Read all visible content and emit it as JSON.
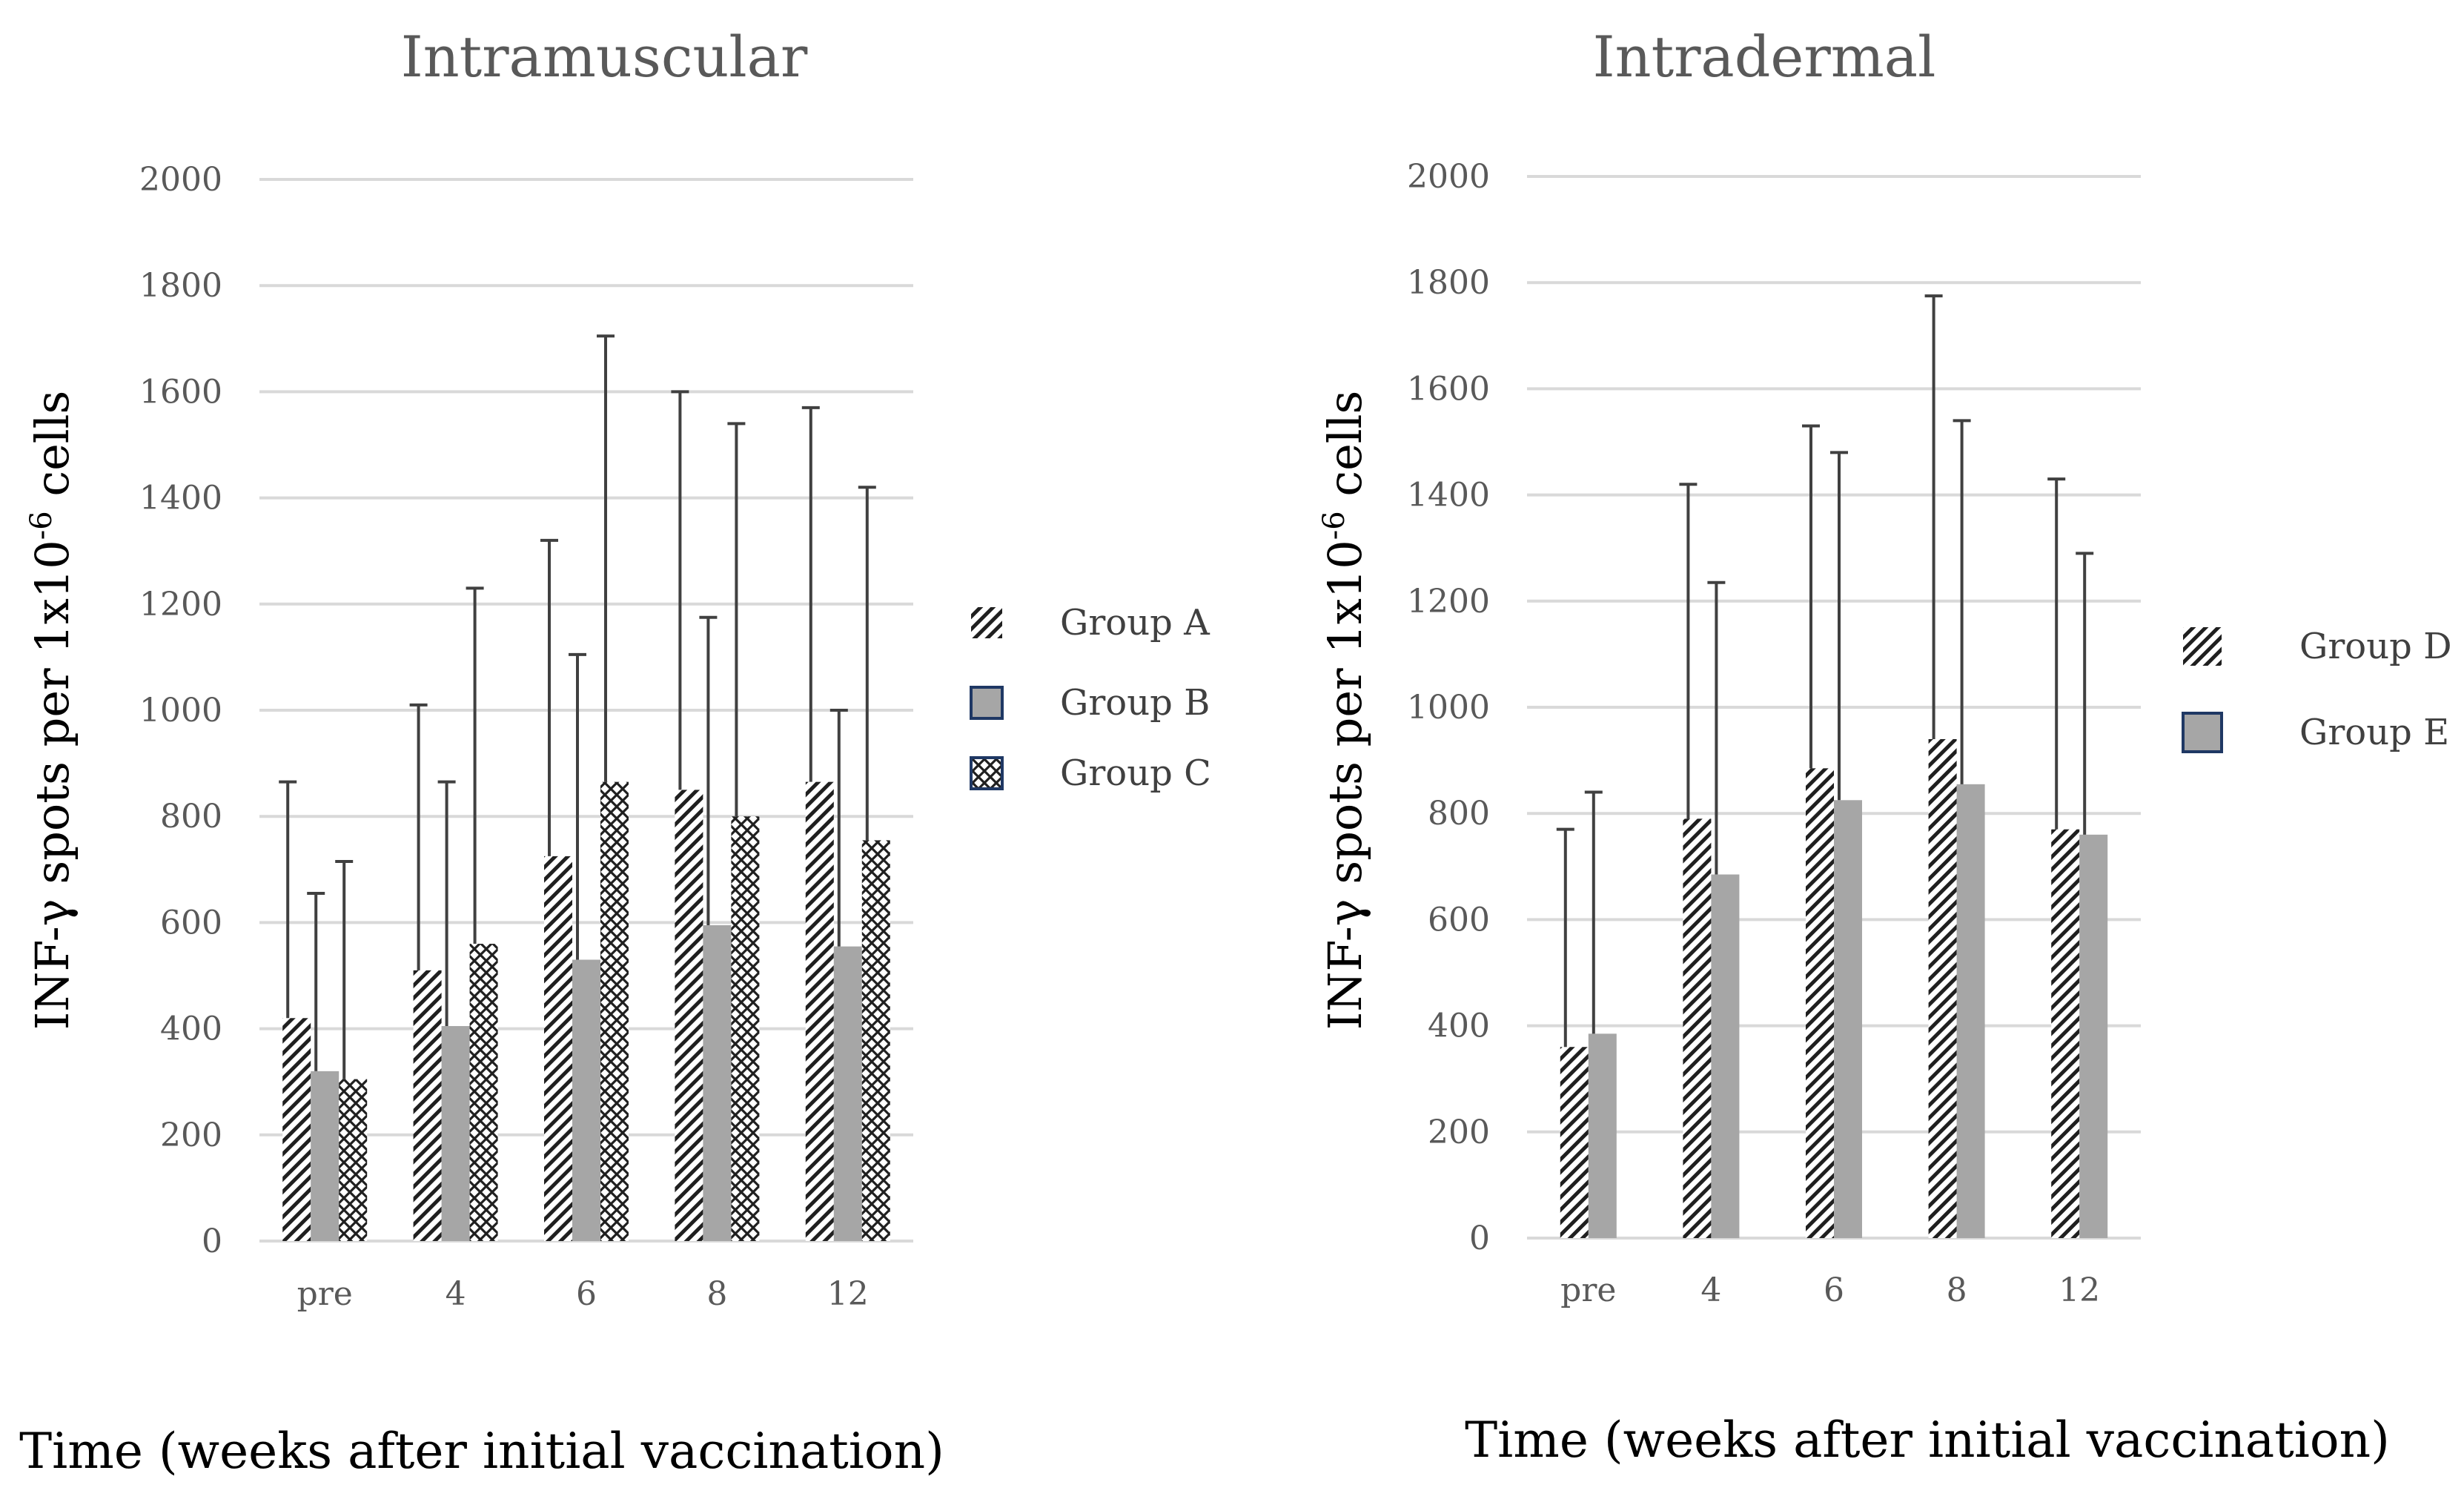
{
  "figure": {
    "y_axis_label_main": "INF-γ spots per 1x10",
    "y_axis_label_exp": "-6",
    "y_axis_label_tail": " cells"
  },
  "chart_data": [
    {
      "type": "bar",
      "title": "Intramuscular",
      "xlabel": "Time (weeks after initial vaccination)",
      "ylabel": "INF-γ spots per 1x10-6 cells",
      "categories": [
        "pre",
        "4",
        "6",
        "8",
        "12"
      ],
      "ylim": [
        0,
        2000
      ],
      "yticks": [
        0,
        200,
        400,
        600,
        800,
        1000,
        1200,
        1400,
        1600,
        1800,
        2000
      ],
      "grid": true,
      "legend_position": "right",
      "series": [
        {
          "name": "Group A",
          "pattern": "diag",
          "values": [
            420,
            510,
            725,
            850,
            865
          ],
          "error_upper": [
            865,
            1010,
            1320,
            1600,
            1570
          ]
        },
        {
          "name": "Group B",
          "pattern": "solid",
          "values": [
            320,
            405,
            530,
            595,
            555
          ],
          "error_upper": [
            655,
            865,
            1105,
            1175,
            1000
          ]
        },
        {
          "name": "Group C",
          "pattern": "cross",
          "values": [
            305,
            560,
            865,
            800,
            755
          ],
          "error_upper": [
            715,
            1230,
            1705,
            1540,
            1420
          ]
        }
      ]
    },
    {
      "type": "bar",
      "title": "Intradermal",
      "xlabel": "Time (weeks after initial vaccination)",
      "ylabel": "INF-γ spots per 1x10-6 cells",
      "categories": [
        "pre",
        "4",
        "6",
        "8",
        "12"
      ],
      "ylim": [
        0,
        2000
      ],
      "yticks": [
        0,
        200,
        400,
        600,
        800,
        1000,
        1200,
        1400,
        1600,
        1800,
        2000
      ],
      "grid": true,
      "legend_position": "right",
      "series": [
        {
          "name": "Group D",
          "pattern": "diag",
          "values": [
            360,
            790,
            885,
            940,
            770
          ],
          "error_upper": [
            770,
            1420,
            1530,
            1775,
            1430
          ]
        },
        {
          "name": "Group E",
          "pattern": "solid",
          "values": [
            385,
            685,
            825,
            855,
            760
          ],
          "error_upper": [
            840,
            1235,
            1480,
            1540,
            1290
          ]
        }
      ]
    }
  ],
  "colors": {
    "solid_fill": "#a6a6a6",
    "pattern_ink": "#1f1f1f",
    "legend_border": "#1f3864",
    "grid": "#d9d9d9",
    "error_bar": "#404040",
    "tick_text": "#595959"
  }
}
